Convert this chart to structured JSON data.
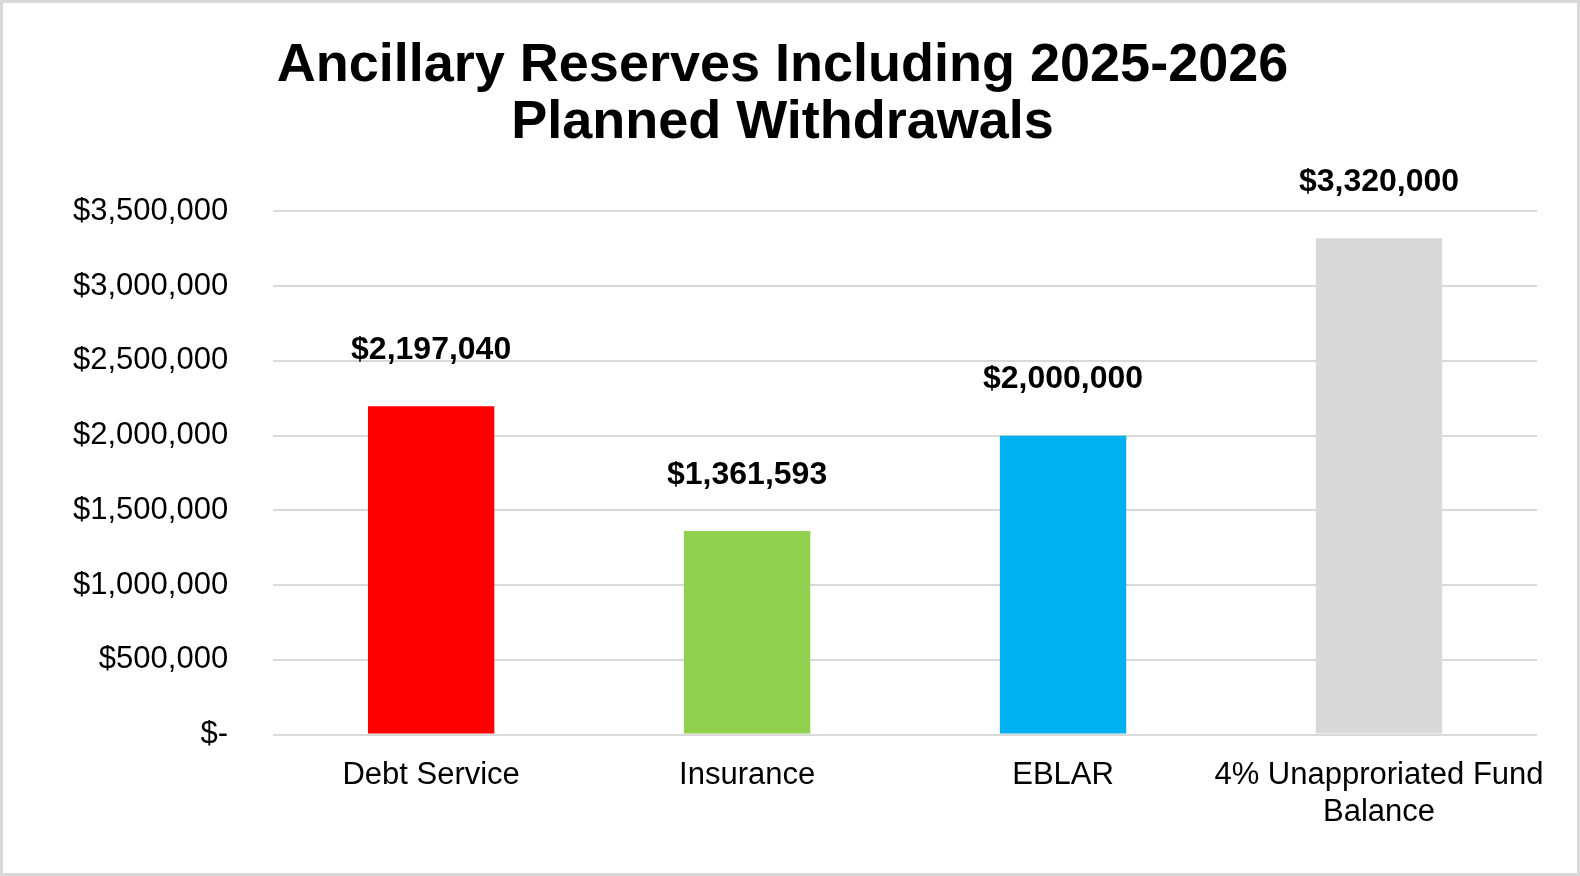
{
  "chart_data": {
    "type": "bar",
    "title": "Ancillary Reserves Including 2025-2026 Planned Withdrawals",
    "categories": [
      "Debt Service",
      "Insurance",
      "EBLAR",
      "4% Unapproriated Fund Balance"
    ],
    "values": [
      2197040,
      1361593,
      2000000,
      3320000
    ],
    "colors": [
      "#ff0000",
      "#92d050",
      "#00b0f0",
      "#d9d9d9"
    ],
    "value_labels": [
      "$2,197,040",
      "$1,361,593",
      "$2,000,000",
      "$3,320,000"
    ],
    "ylim": [
      0,
      3500000
    ],
    "yticks": [
      {
        "value": 0,
        "label": "$-"
      },
      {
        "value": 500000,
        "label": "$500,000"
      },
      {
        "value": 1000000,
        "label": "$1,000,000"
      },
      {
        "value": 1500000,
        "label": "$1,500,000"
      },
      {
        "value": 2000000,
        "label": "$2,000,000"
      },
      {
        "value": 2500000,
        "label": "$2,500,000"
      },
      {
        "value": 3000000,
        "label": "$3,000,000"
      },
      {
        "value": 3500000,
        "label": "$3,500,000"
      }
    ],
    "grid": "y",
    "legend": false
  }
}
